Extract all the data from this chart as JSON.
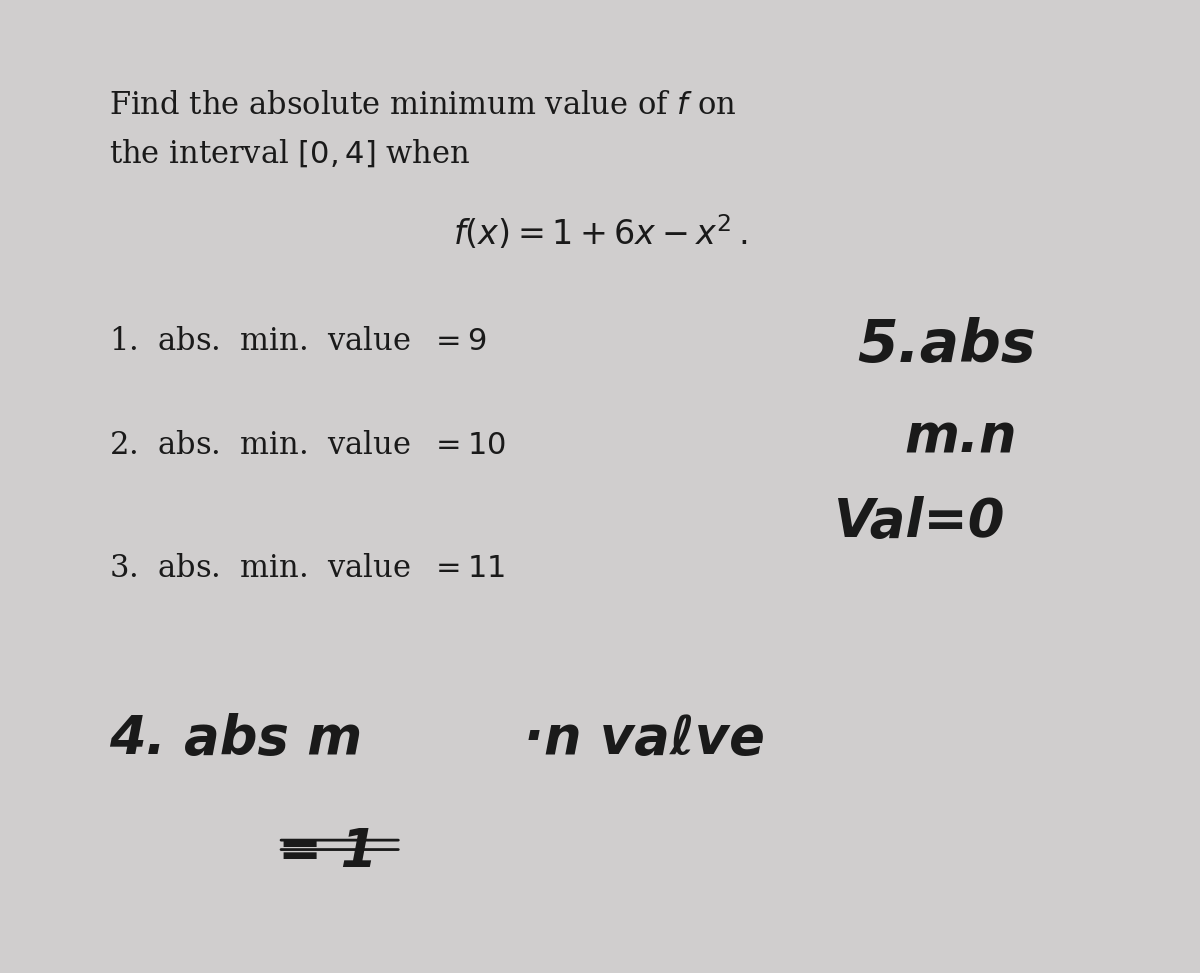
{
  "bg_color": "#d0cece",
  "text_color": "#1a1a1a",
  "title_line1": "Find the absolute minimum value of $f$ on",
  "title_line2": "the interval $[0, 4]$ when",
  "formula": "$f(x)  =  1 + 6x - x^2\\,.$",
  "option1": "1.  abs.  min.  value  $= 9$",
  "option2": "2.  abs.  min.  value  $= 10$",
  "option3": "3.  abs.  min.  value  $= 11$",
  "option4_handwritten": "4. abs m⋅n vaℓve\n    = 1",
  "annotation_handwritten": "5.abs\nm.n\nVal=0",
  "fig_width": 12.0,
  "fig_height": 9.73
}
